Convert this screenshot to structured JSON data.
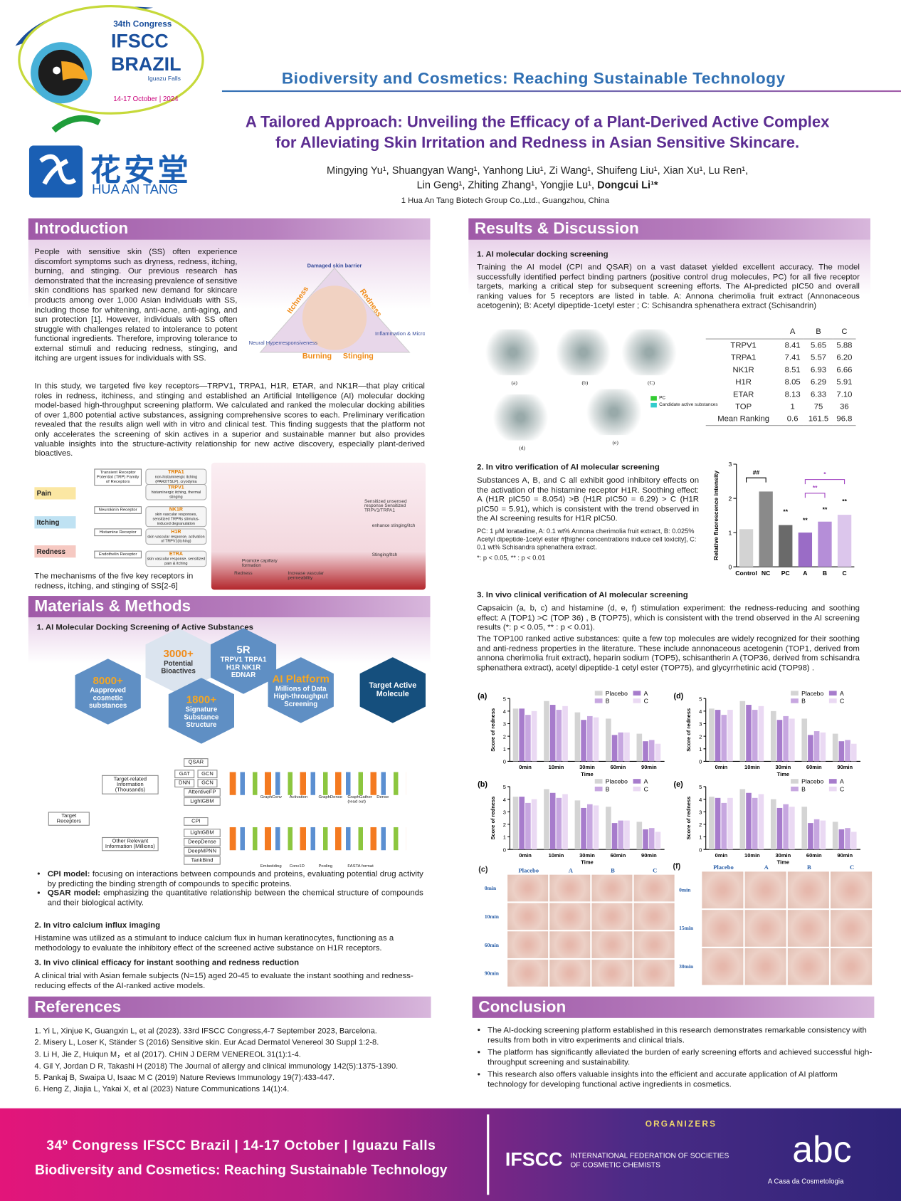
{
  "header": {
    "congress": "34th Congress",
    "ifscc": "IFSCC",
    "brazil": "BRAZIL",
    "place": "Iguazu Falls",
    "dates": "14-17 October | 2024",
    "brand_cn": "花安堂",
    "brand_en": "HUA AN TANG",
    "theme": "Biodiversity and Cosmetics: Reaching Sustainable Technology",
    "title": [
      "A Tailored Approach: Unveiling the Efficacy of a Plant-Derived Active Complex",
      "for Alleviating Skin Irritation and Redness in Asian Sensitive Skincare."
    ],
    "authors": [
      "Mingying Yu¹, Shuangyan Wang¹, Yanhong Liu¹, Zi Wang¹, Shuifeng Liu¹, Xian Xu¹, Lu Ren¹,",
      "Lin Geng¹, Zhiting Zhang¹, Yongjie Lu¹,"
    ],
    "corresponding": "Dongcui Li¹*",
    "affiliation": "1 Hua An Tang Biotech Group Co.,Ltd., Guangzhou, China"
  },
  "introduction": {
    "heading": "Introduction",
    "p1": "People with sensitive skin (SS) often experience discomfort symptoms such as dryness, redness, itching, burning, and stinging. Our previous research has demonstrated that the increasing prevalence of sensitive skin conditions has sparked new demand for skincare products among over 1,000 Asian individuals with SS, including those for whitening, anti-acne, anti-aging, and sun protection [1]. However, individuals with SS often struggle with challenges related to intolerance to potent functional ingredients. Therefore, improving tolerance to external stimuli and reducing redness, stinging, and itching are urgent issues for individuals with SS.",
    "p2": "In this study, we targeted five key receptors—TRPV1, TRPA1, H1R, ETAR, and NK1R—that play critical roles in redness, itchiness, and stinging and  established an Artificial Intelligence (AI) molecular docking model-based high-throughput screening platform. We calculated and ranked the molecular docking abilities of over 1,800 potential active substances, assigning comprehensive scores to each. Preliminary verification revealed that the results align well with in vitro and clinical test. This finding suggests that the platform not only accelerates the screening of skin actives in a superior and sustainable manner but also provides valuable insights into the structure-activity relationship for new active discovery, especially plant-derived bioactives.",
    "triangle": {
      "top": "Damaged skin barrier",
      "left": "Itchness",
      "right": "Redness",
      "right_corner": "Inflammation & Microvascular Reactivity",
      "left_corner": "Neural Hyperresponsiveness",
      "bottom_left": "Burning",
      "bottom_right": "Stinging"
    },
    "symptoms": [
      "Pain",
      "Itching",
      "Redness"
    ],
    "receptors": [
      {
        "family": "Transient Receptor Potential (TRP) Family of Receptors",
        "items": [
          {
            "name": "TRPA1",
            "desc": "non-histaminergic itching (PAR2/TSLP), cryodynia"
          },
          {
            "name": "TRPV1",
            "desc": "histaminergic itching, thermal stinging"
          }
        ]
      },
      {
        "family": "Neurokinin Receptor",
        "items": [
          {
            "name": "NK1R",
            "desc": "skin vascular responses, sensitized TRPRs stimulus-induced degranulation"
          }
        ]
      },
      {
        "family": "Histamine Receptor",
        "items": [
          {
            "name": "H1R",
            "desc": "skin vascular response, activation of TRPV1(itching)"
          }
        ]
      },
      {
        "family": "Endothelin Receptor",
        "items": [
          {
            "name": "ETRA",
            "desc": "skin vascular response, sensitized pain & itching"
          }
        ]
      }
    ],
    "pathway": [
      "Sensitized unsensed response Sensitized TRPV1/TRPA1",
      "enhance stinging/itch",
      "Stinging/Itch",
      "Promote capillary formation",
      "Increase vascular permeability",
      "Redness"
    ],
    "caption": "The mechanisms of the five key receptors in redness, itching, and stinging of SS[2-6]"
  },
  "methods": {
    "heading": "Materials & Methods",
    "s1": "1. AI Molecular Docking Screening of Active Substances",
    "hexagons": [
      {
        "big": "8000+",
        "small": "Aapproved cosmetic substances"
      },
      {
        "big": "3000+",
        "small": "Potential Bioactives"
      },
      {
        "big": "5R",
        "small": "TRPV1  TRPA1 H1R  NK1R EDNAR"
      },
      {
        "big": "1800+",
        "small": "Signature Substance Structure"
      },
      {
        "big": "AI Platform",
        "small": "Millions of Data High-throughput Screening"
      },
      {
        "big": "Target Active Molecule"
      }
    ],
    "tree": {
      "root": "Target Receptors",
      "a": "Target-related Information (Thousands)",
      "b": "Other Relevant Information (Millions)",
      "qsar": "QSAR",
      "qsar_models": [
        "GAT",
        "GCN",
        "DNN",
        "GCN",
        "AttentiveFP",
        "LightGBM"
      ],
      "cpi": "CPI",
      "cpi_models": [
        "LightGBM",
        "DeepDense",
        "DeepMPNN",
        "TankBind"
      ],
      "net": [
        "GraphConv",
        "Activation",
        "GraphDense",
        "GraphGather (read out)",
        "Dense",
        "Embedding",
        "Conv1D",
        "Pooling",
        "FASTA format"
      ]
    },
    "bullets": [
      {
        "lead": "CPI model:",
        "text": "focusing on interactions between compounds and proteins, evaluating potential drug activity by predicting the binding strength of compounds to specific proteins."
      },
      {
        "lead": "QSAR model:",
        "text": "emphasizing the quantitative relationship between the chemical structure of compounds and their biological activity."
      }
    ],
    "s2": "2. In vitro calcium influx imaging",
    "s2_text": "Histamine was utilized as a stimulant to induce calcium flux in human keratinocytes, functioning as a methodology to evaluate the inhibitory effect of the screened active substance on H1R receptors.",
    "s3": "3. In vivo clinical efficacy for instant soothing and redness reduction",
    "s3_text": "A clinical trial with Asian female subjects (N=15) aged 20-45 to evaluate the instant soothing and redness-reducing effects of the AI-ranked active models."
  },
  "results": {
    "heading": "Results & Discussion",
    "s1": "1. AI molecular docking screening",
    "s1_text": "Training the AI model (CPI and QSAR) on a vast dataset yielded excellent accuracy. The model successfully identified perfect binding partners (positive control drug molecules, PC) for all five receptor targets, marking a critical step for subsequent screening efforts. The AI-predicted pIC50  and overall ranking values for 5 receptors are listed in table. A: Annona cherimolia fruit extract (Annonaceous acetogenin); B: Acetyl dipeptide-1cetyl ester ; C: Schisandra sphenathera extract (Schisandrin)",
    "docking_labels": [
      "(a)",
      "(b)",
      "(C)",
      "(d)",
      "(e)"
    ],
    "docking_legend": [
      "PC",
      "Candidate active substances"
    ],
    "table": {
      "columns": [
        "A",
        "B",
        "C"
      ],
      "rows": [
        {
          "label": "TRPV1",
          "cells": [
            "8.41",
            "5.65",
            "5.88"
          ]
        },
        {
          "label": "TRPA1",
          "cells": [
            "7.41",
            "5.57",
            "6.20"
          ]
        },
        {
          "label": "NK1R",
          "cells": [
            "8.51",
            "6.93",
            "6.66"
          ]
        },
        {
          "label": "H1R",
          "cells": [
            "8.05",
            "6.29",
            "5.91"
          ]
        },
        {
          "label": "ETAR",
          "cells": [
            "8.13",
            "6.33",
            "7.10"
          ]
        },
        {
          "label": "TOP",
          "cells": [
            "1",
            "75",
            "36"
          ]
        },
        {
          "label": "Mean Ranking",
          "cells": [
            "0.6",
            "161.5",
            "96.8"
          ]
        }
      ]
    },
    "s2": "2. In vitro verification of AI molecular screening",
    "s2_text": "Substances A, B, and C all exhibit good inhibitory effects on the activation of the histamine receptor H1R. Soothing effect: A (H1R pIC50 = 8.054) >B (H1R pIC50 = 6.29) > C (H1R pIC50 = 5.91), which is consistent with the trend observed in the AI screening results for H1R pIC50.",
    "s2_note": "PC: 1 μM loratadine, A: 0.1 wt% Annona cherimolia fruit extract, B: 0.025% Acetyl dipeptide-1cetyl ester #[higher concentrations induce cell toxicity], C: 0.1 wt% Schisandra sphenathera extract.",
    "s2_sig": "*: p < 0.05, ** : p < 0.01",
    "s3": "3. In vivo clinical  verification of AI molecular screening",
    "s3_p1": "Capsaicin (a, b, c) and histamine (d, e, f) stimulation experiment: the redness-reducing and soothing effect: A (TOP1) >C (TOP 36) , B (TOP75), which is consistent with the trend observed in the AI screening results (*: p < 0.05, ** : p < 0.01).",
    "s3_p2": "The TOP100 ranked active substances: quite a few top molecules are widely recognized for their soothing and anti-redness properties in the literature. These include annonaceous acetogenin (TOP1, derived from annona cherimolia fruit extract), heparin sodium (TOP5), schisantherin A (TOP36, derived from schisandra sphenathera extract), acetyl dipeptide-1 cetyl ester (TOP75), and glycyrrhetinic acid (TOP98) .",
    "photos_c": {
      "panel": "(c)",
      "columns": [
        "Placebo",
        "A",
        "B",
        "C"
      ],
      "rows": [
        "0min",
        "10min",
        "60min",
        "90min"
      ]
    },
    "photos_f": {
      "panel": "(f)",
      "columns": [
        "Placebo",
        "A",
        "B",
        "C"
      ],
      "rows": [
        "0min",
        "15min",
        "30min"
      ]
    }
  },
  "chart_data": [
    {
      "type": "bar",
      "y_label": "Relative fluorescence intensity",
      "categories": [
        "Control",
        "NC",
        "PC",
        "A",
        "B",
        "C"
      ],
      "values": [
        1.1,
        2.2,
        1.22,
        1.0,
        1.32,
        1.52
      ],
      "colors": [
        "#d3d3d3",
        "#8a8a8a",
        "#6a6a6a",
        "#9a6cc6",
        "#b58ed8",
        "#dcc6ec"
      ],
      "ylim": [
        0,
        3
      ],
      "yticks": [
        0,
        1,
        2,
        3
      ],
      "annotations": [
        "##",
        "**",
        "**",
        "**",
        "**",
        "**",
        "*"
      ]
    },
    {
      "type": "grouped-bar",
      "panel": "(a)",
      "x_label": "Time",
      "y_label": "Score of redness",
      "categories": [
        "0min",
        "10min",
        "30min",
        "60min",
        "90min"
      ],
      "series": [
        {
          "name": "Placebo",
          "color": "#d4d4d4",
          "values": [
            4.2,
            4.8,
            3.9,
            3.4,
            2.2
          ]
        },
        {
          "name": "A",
          "color": "#a77ccc",
          "values": [
            4.2,
            4.5,
            3.3,
            2.1,
            1.6
          ]
        },
        {
          "name": "B",
          "color": "#c7a7e0",
          "values": [
            3.7,
            4.1,
            3.6,
            2.3,
            1.7
          ]
        },
        {
          "name": "C",
          "color": "#ead9f3",
          "values": [
            4.0,
            4.4,
            3.5,
            2.3,
            1.4
          ]
        }
      ],
      "ylim": [
        0,
        5
      ],
      "yticks": [
        0,
        1,
        2,
        3,
        4,
        5
      ]
    },
    {
      "type": "grouped-bar",
      "panel": "(b)",
      "x_label": "Time",
      "y_label": "Score of redness",
      "categories": [
        "0min",
        "10min",
        "30min",
        "60min",
        "90min"
      ],
      "series": [
        {
          "name": "Placebo",
          "color": "#d4d4d4",
          "values": [
            4.2,
            4.8,
            3.9,
            3.4,
            2.2
          ]
        },
        {
          "name": "A",
          "color": "#a77ccc",
          "values": [
            4.2,
            4.5,
            3.3,
            2.1,
            1.6
          ]
        },
        {
          "name": "B",
          "color": "#c7a7e0",
          "values": [
            3.7,
            4.1,
            3.6,
            2.3,
            1.7
          ]
        },
        {
          "name": "C",
          "color": "#ead9f3",
          "values": [
            4.0,
            4.4,
            3.5,
            2.3,
            1.4
          ]
        }
      ],
      "ylim": [
        0,
        5
      ],
      "yticks": [
        0,
        1,
        2,
        3,
        4,
        5
      ]
    },
    {
      "type": "grouped-bar",
      "panel": "(d)",
      "x_label": "Time",
      "y_label": "Score of redness",
      "categories": [
        "0min",
        "10min",
        "30min",
        "60min",
        "90min"
      ],
      "series": [
        {
          "name": "Placebo",
          "color": "#d4d4d4",
          "values": [
            4.2,
            4.8,
            4.0,
            3.4,
            2.2
          ]
        },
        {
          "name": "A",
          "color": "#a77ccc",
          "values": [
            4.1,
            4.5,
            3.3,
            2.1,
            1.6
          ]
        },
        {
          "name": "B",
          "color": "#c7a7e0",
          "values": [
            3.7,
            4.1,
            3.6,
            2.4,
            1.7
          ]
        },
        {
          "name": "C",
          "color": "#ead9f3",
          "values": [
            4.1,
            4.4,
            3.4,
            2.3,
            1.4
          ]
        }
      ],
      "ylim": [
        0,
        5
      ],
      "yticks": [
        0,
        1,
        2,
        3,
        4,
        5
      ]
    },
    {
      "type": "grouped-bar",
      "panel": "(e)",
      "x_label": "Time",
      "y_label": "Score of redness",
      "categories": [
        "0min",
        "10min",
        "30min",
        "60min",
        "90min"
      ],
      "series": [
        {
          "name": "Placebo",
          "color": "#d4d4d4",
          "values": [
            4.2,
            4.8,
            4.0,
            3.4,
            2.2
          ]
        },
        {
          "name": "A",
          "color": "#a77ccc",
          "values": [
            4.1,
            4.5,
            3.3,
            2.1,
            1.6
          ]
        },
        {
          "name": "B",
          "color": "#c7a7e0",
          "values": [
            3.7,
            4.1,
            3.6,
            2.4,
            1.7
          ]
        },
        {
          "name": "C",
          "color": "#ead9f3",
          "values": [
            4.1,
            4.4,
            3.4,
            2.3,
            1.4
          ]
        }
      ],
      "ylim": [
        0,
        5
      ],
      "yticks": [
        0,
        1,
        2,
        3,
        4,
        5
      ]
    }
  ],
  "references": {
    "heading": "References",
    "items": [
      "1. Yi L, Xinjue K, Guangxin L, et al (2023). 33rd IFSCC Congress,4-7 September 2023, Barcelona.",
      "2. Misery L, Loser K, Ständer S (2016) Sensitive skin. Eur Acad Dermatol Venereol 30 Suppl 1:2-8.",
      "3. Li H, Jie Z, Huiqun M，et al (2017). CHIN J DERM VENEREOL 31(1):1-4.",
      "4. Gil Y, Jordan D R, Takashi H (2018) The Journal of allergy and clinical immunology 142(5):1375-1390.",
      "5. Pankaj B, Swaipa U, Isaac M C (2019) Nature Reviews Immunology 19(7):433-447.",
      "6. Heng Z, Jiajia L, Yakai X, et al (2023)  Nature Communications 14(1):4."
    ]
  },
  "conclusion": {
    "heading": "Conclusion",
    "items": [
      "The AI-docking screening platform established in this research demonstrates remarkable consistency with results from both in vitro experiments and clinical trials.",
      "The platform has significantly alleviated the burden of early screening efforts and achieved successful high-throughput screening and sustainability.",
      "This research also offers valuable insights into the efficient and accurate application of AI platform technology for developing functional active ingredients in cosmetics."
    ]
  },
  "footer": {
    "line1": "34º Congress IFSCC Brazil | 14-17 October | Iguazu Falls",
    "line2": "Biodiversity and Cosmetics: Reaching Sustainable Technology",
    "organizers": "ORGANIZERS",
    "ifscc": "IFSCC",
    "ifscc_name": "INTERNATIONAL FEDERATION OF SOCIETIES OF COSMETIC CHEMISTS",
    "abc": "abc",
    "abc_tag": "A Casa da Cosmetologia"
  }
}
